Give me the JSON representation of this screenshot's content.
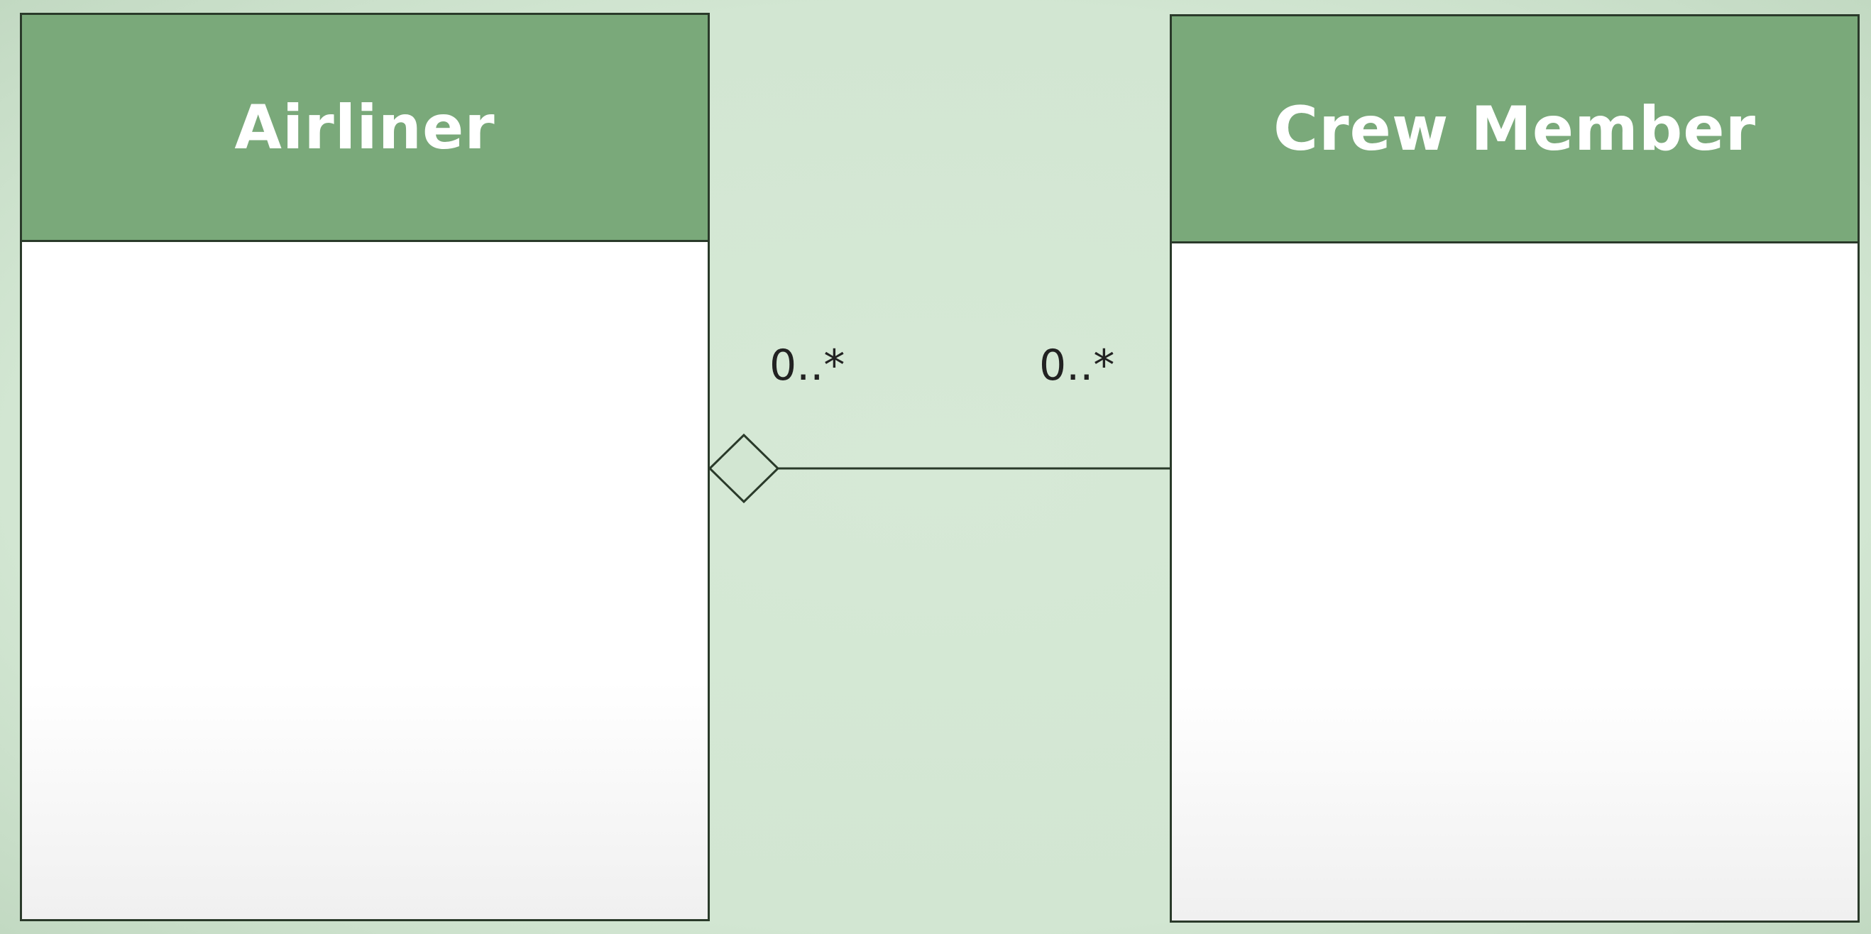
{
  "diagram": {
    "classes": [
      {
        "name": "Airliner"
      },
      {
        "name": "Crew Member"
      }
    ],
    "association": {
      "type": "aggregation",
      "left_multiplicity": "0..*",
      "right_multiplicity": "0..*"
    }
  },
  "colors": {
    "background": "#d2e6d2",
    "header": "#7aa97a",
    "header_text": "#ffffff",
    "line": "#2a3a2a"
  }
}
